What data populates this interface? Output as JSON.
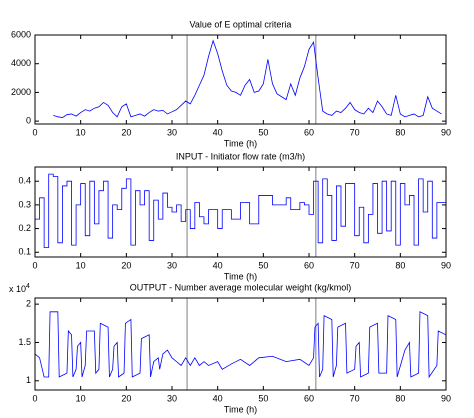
{
  "chart_data": [
    {
      "type": "line",
      "title": "Value of E optimal criteria",
      "xlabel": "Time (h)",
      "xlim": [
        0,
        90
      ],
      "xticks": [
        0,
        10,
        20,
        30,
        40,
        50,
        60,
        70,
        80,
        90
      ],
      "ylim": [
        -200,
        6000
      ],
      "yticks": [
        0,
        2000,
        4000,
        6000
      ],
      "color": "#0000ff",
      "vlines": [
        33.3,
        61.5
      ],
      "vline_color": "#808080",
      "x": [
        4,
        5,
        6,
        7,
        8,
        9,
        10,
        11,
        12,
        13,
        14,
        15,
        16,
        17,
        18,
        19,
        20,
        21,
        22,
        23,
        24,
        25,
        26,
        27,
        28,
        29,
        30,
        31,
        32,
        33,
        34,
        35,
        36,
        37,
        38,
        39,
        40,
        41,
        42,
        43,
        44,
        45,
        46,
        47,
        48,
        49,
        50,
        51,
        52,
        53,
        54,
        55,
        56,
        57,
        58,
        59,
        60,
        61,
        62,
        63,
        64,
        65,
        66,
        67,
        68,
        69,
        70,
        71,
        72,
        73,
        74,
        75,
        76,
        77,
        78,
        79,
        80,
        81,
        82,
        83,
        84,
        85,
        86,
        87,
        88,
        89
      ],
      "values": [
        400,
        300,
        250,
        450,
        500,
        350,
        600,
        800,
        700,
        900,
        1000,
        1300,
        1100,
        600,
        300,
        1000,
        1200,
        300,
        400,
        500,
        350,
        600,
        800,
        700,
        750,
        500,
        650,
        800,
        1100,
        1400,
        1200,
        1800,
        2500,
        3200,
        4500,
        5600,
        4700,
        3500,
        2500,
        2100,
        2000,
        1800,
        2500,
        2900,
        2000,
        2100,
        2600,
        4300,
        2600,
        1900,
        1700,
        1500,
        2600,
        1800,
        3000,
        3800,
        5000,
        5500,
        3000,
        700,
        500,
        400,
        700,
        600,
        900,
        1300,
        800,
        600,
        500,
        900,
        600,
        1400,
        1000,
        500,
        400,
        1800,
        500,
        300,
        400,
        500,
        300,
        400,
        1700,
        900,
        700,
        500
      ]
    },
    {
      "type": "line",
      "title": "INPUT - Initiator flow rate (m3/h)",
      "xlabel": "Time (h)",
      "xlim": [
        0,
        90
      ],
      "xticks": [
        0,
        10,
        20,
        30,
        40,
        50,
        60,
        70,
        80,
        90
      ],
      "ylim": [
        0.08,
        0.46
      ],
      "yticks": [
        0.1,
        0.2,
        0.3,
        0.4
      ],
      "color": "#0000ff",
      "vlines": [
        33.3,
        61.5
      ],
      "vline_color": "#808080",
      "x": [
        0,
        1,
        1,
        2,
        2,
        3,
        3,
        4,
        4,
        5,
        5,
        6,
        6,
        7,
        7,
        8,
        8,
        9,
        9,
        10,
        10,
        11,
        11,
        12,
        12,
        13,
        13,
        14,
        14,
        15,
        15,
        16,
        16,
        17,
        17,
        18,
        18,
        19,
        19,
        20,
        20,
        21,
        21,
        22,
        22,
        23,
        23,
        24,
        24,
        25,
        25,
        26,
        26,
        27,
        27,
        28,
        28,
        29,
        29,
        30,
        30,
        31,
        31,
        32,
        32,
        33,
        33,
        34,
        34,
        35,
        35,
        36,
        36,
        37,
        37,
        38,
        38,
        40,
        40,
        41,
        41,
        43,
        43,
        45,
        45,
        47,
        47,
        49,
        49,
        52,
        52,
        55,
        55,
        56,
        56,
        58,
        58,
        59,
        59,
        60,
        60,
        61,
        61,
        62,
        62,
        63,
        63,
        64,
        64,
        65,
        65,
        66,
        66,
        67,
        67,
        68,
        68,
        70,
        70,
        71,
        71,
        72,
        72,
        73,
        73,
        74,
        74,
        75,
        75,
        76,
        76,
        77,
        77,
        78,
        78,
        79,
        79,
        80,
        80,
        81,
        81,
        82,
        82,
        83,
        83,
        84,
        84,
        85,
        85,
        86,
        86,
        87,
        87,
        88,
        88,
        90
      ],
      "values": [
        0.24,
        0.24,
        0.33,
        0.33,
        0.12,
        0.12,
        0.43,
        0.43,
        0.42,
        0.42,
        0.14,
        0.14,
        0.38,
        0.38,
        0.4,
        0.4,
        0.13,
        0.13,
        0.3,
        0.3,
        0.39,
        0.39,
        0.17,
        0.17,
        0.4,
        0.4,
        0.22,
        0.22,
        0.36,
        0.36,
        0.4,
        0.4,
        0.16,
        0.16,
        0.3,
        0.3,
        0.28,
        0.28,
        0.37,
        0.37,
        0.41,
        0.41,
        0.13,
        0.13,
        0.36,
        0.36,
        0.3,
        0.3,
        0.36,
        0.36,
        0.15,
        0.15,
        0.32,
        0.32,
        0.24,
        0.24,
        0.35,
        0.35,
        0.29,
        0.29,
        0.27,
        0.27,
        0.3,
        0.3,
        0.23,
        0.23,
        0.28,
        0.28,
        0.2,
        0.2,
        0.31,
        0.31,
        0.25,
        0.25,
        0.22,
        0.22,
        0.28,
        0.28,
        0.2,
        0.2,
        0.28,
        0.28,
        0.24,
        0.24,
        0.31,
        0.31,
        0.22,
        0.22,
        0.34,
        0.34,
        0.3,
        0.3,
        0.33,
        0.33,
        0.28,
        0.28,
        0.31,
        0.31,
        0.3,
        0.3,
        0.26,
        0.26,
        0.4,
        0.4,
        0.14,
        0.14,
        0.41,
        0.41,
        0.34,
        0.34,
        0.15,
        0.15,
        0.38,
        0.38,
        0.21,
        0.21,
        0.39,
        0.39,
        0.17,
        0.17,
        0.29,
        0.29,
        0.14,
        0.14,
        0.26,
        0.26,
        0.39,
        0.39,
        0.18,
        0.18,
        0.4,
        0.4,
        0.19,
        0.19,
        0.4,
        0.4,
        0.13,
        0.13,
        0.39,
        0.39,
        0.3,
        0.3,
        0.34,
        0.34,
        0.13,
        0.13,
        0.41,
        0.41,
        0.27,
        0.27,
        0.4,
        0.4,
        0.16,
        0.16,
        0.31,
        0.31
      ]
    },
    {
      "type": "line",
      "title": "OUTPUT - Number average molecular weight (kg/kmol)",
      "xlabel": "Time (h)",
      "y_multiplier": {
        "base": "x 10",
        "exponent": "4"
      },
      "xlim": [
        0,
        90
      ],
      "xticks": [
        0,
        10,
        20,
        30,
        40,
        50,
        60,
        70,
        80,
        90
      ],
      "ylim": [
        0.88,
        2.08
      ],
      "yticks": [
        1,
        1.5,
        2
      ],
      "color": "#0000ff",
      "vlines": [
        33.3,
        61.5
      ],
      "vline_color": "#808080",
      "x": [
        0,
        1,
        2,
        3,
        3.3,
        5,
        5.3,
        7,
        7.3,
        8,
        8.3,
        9,
        9.3,
        10,
        10.3,
        11,
        11.3,
        13,
        13.3,
        14,
        14.3,
        16,
        16.3,
        17,
        17.3,
        18,
        18.3,
        19.5,
        19.8,
        21,
        21.3,
        23,
        23.3,
        25,
        25.3,
        26,
        27,
        27.3,
        28,
        29,
        30,
        31,
        32,
        33,
        34,
        35,
        36,
        37,
        38,
        40,
        41,
        43,
        45,
        47,
        49,
        52,
        55,
        58,
        60,
        61,
        61.3,
        62,
        62.3,
        63,
        63.3,
        65,
        65.3,
        66,
        66.3,
        68,
        68.3,
        70,
        70.3,
        71,
        71.3,
        73,
        73.3,
        75,
        75.3,
        77,
        77.3,
        79,
        79.3,
        81,
        82,
        82.3,
        84,
        84.3,
        86,
        86.3,
        88,
        88.3,
        90
      ],
      "values": [
        1.35,
        1.3,
        1.05,
        1.05,
        1.9,
        1.9,
        1.05,
        1.1,
        1.65,
        1.6,
        1.05,
        1.15,
        1.45,
        1.5,
        1.05,
        1.2,
        1.65,
        1.65,
        1.1,
        1.15,
        1.75,
        1.7,
        1.05,
        1.15,
        1.45,
        1.5,
        1.05,
        1.1,
        1.75,
        1.8,
        1.05,
        1.1,
        1.55,
        1.6,
        1.05,
        1.25,
        1.3,
        1.15,
        1.35,
        1.4,
        1.3,
        1.25,
        1.2,
        1.3,
        1.2,
        1.3,
        1.2,
        1.25,
        1.2,
        1.25,
        1.15,
        1.22,
        1.28,
        1.2,
        1.3,
        1.32,
        1.25,
        1.28,
        1.2,
        1.3,
        1.7,
        1.75,
        1.05,
        1.15,
        1.85,
        1.8,
        1.05,
        1.2,
        1.7,
        1.75,
        1.1,
        1.15,
        1.45,
        1.5,
        1.05,
        1.1,
        1.7,
        1.75,
        1.1,
        1.1,
        1.85,
        1.8,
        1.05,
        1.4,
        1.5,
        1.05,
        1.1,
        1.9,
        1.85,
        1.05,
        1.2,
        1.65,
        1.6
      ]
    }
  ]
}
